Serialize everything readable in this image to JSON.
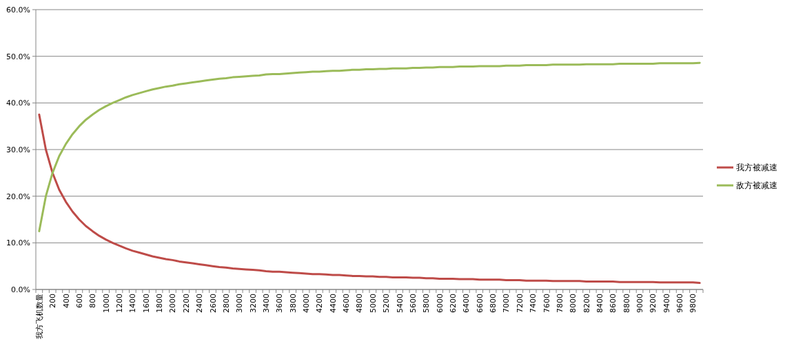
{
  "chart_data": {
    "type": "line",
    "categories": [
      "我方飞机数量",
      null,
      "200",
      null,
      "400",
      null,
      "600",
      null,
      "800",
      null,
      "1000",
      null,
      "1200",
      null,
      "1400",
      null,
      "1600",
      null,
      "1800",
      null,
      "2000",
      null,
      "2200",
      null,
      "2400",
      null,
      "2600",
      null,
      "2800",
      null,
      "3000",
      null,
      "3200",
      null,
      "3400",
      null,
      "3600",
      null,
      "3800",
      null,
      "4000",
      null,
      "4200",
      null,
      "4400",
      null,
      "4600",
      null,
      "4800",
      null,
      "5000",
      null,
      "5200",
      null,
      "5400",
      null,
      "5600",
      null,
      "5800",
      null,
      "6000",
      null,
      "6200",
      null,
      "6400",
      null,
      "6600",
      null,
      "6800",
      null,
      "7000",
      null,
      "7200",
      null,
      "7400",
      null,
      "7600",
      null,
      "7800",
      null,
      "8000",
      null,
      "8200",
      null,
      "8400",
      null,
      "8600",
      null,
      "8800",
      null,
      "9000",
      null,
      "9200",
      null,
      "9400",
      null,
      "9600",
      null,
      "9800",
      null
    ],
    "series": [
      {
        "name": "我方被减速",
        "color": "#be4b48",
        "values": [
          37.5,
          30,
          25,
          21.4,
          18.8,
          16.7,
          15,
          13.6,
          12.5,
          11.5,
          10.7,
          10,
          9.4,
          8.8,
          8.3,
          7.9,
          7.5,
          7.1,
          6.8,
          6.5,
          6.3,
          6,
          5.8,
          5.6,
          5.4,
          5.2,
          5,
          4.8,
          4.7,
          4.5,
          4.4,
          4.3,
          4.2,
          4.1,
          3.9,
          3.8,
          3.8,
          3.7,
          3.6,
          3.5,
          3.4,
          3.3,
          3.3,
          3.2,
          3.1,
          3.1,
          3,
          2.9,
          2.9,
          2.8,
          2.8,
          2.7,
          2.7,
          2.6,
          2.6,
          2.6,
          2.5,
          2.5,
          2.4,
          2.4,
          2.3,
          2.3,
          2.3,
          2.2,
          2.2,
          2.2,
          2.1,
          2.1,
          2.1,
          2.1,
          2,
          2,
          2,
          1.9,
          1.9,
          1.9,
          1.9,
          1.8,
          1.8,
          1.8,
          1.8,
          1.8,
          1.7,
          1.7,
          1.7,
          1.7,
          1.7,
          1.6,
          1.6,
          1.6,
          1.6,
          1.6,
          1.6,
          1.5,
          1.5,
          1.5,
          1.5,
          1.5,
          1.5,
          1.4
        ]
      },
      {
        "name": "敌方被减速",
        "color": "#9bbb59",
        "values": [
          12.5,
          20,
          25,
          28.6,
          31.2,
          33.3,
          35,
          36.4,
          37.5,
          38.5,
          39.3,
          40,
          40.6,
          41.2,
          41.7,
          42.1,
          42.5,
          42.9,
          43.2,
          43.5,
          43.7,
          44,
          44.2,
          44.4,
          44.6,
          44.8,
          45,
          45.2,
          45.3,
          45.5,
          45.6,
          45.7,
          45.8,
          45.9,
          46.1,
          46.2,
          46.2,
          46.3,
          46.4,
          46.5,
          46.6,
          46.7,
          46.7,
          46.8,
          46.9,
          46.9,
          47,
          47.1,
          47.1,
          47.2,
          47.2,
          47.3,
          47.3,
          47.4,
          47.4,
          47.4,
          47.5,
          47.5,
          47.6,
          47.6,
          47.7,
          47.7,
          47.7,
          47.8,
          47.8,
          47.8,
          47.9,
          47.9,
          47.9,
          47.9,
          48,
          48,
          48,
          48.1,
          48.1,
          48.1,
          48.1,
          48.2,
          48.2,
          48.2,
          48.2,
          48.2,
          48.3,
          48.3,
          48.3,
          48.3,
          48.3,
          48.4,
          48.4,
          48.4,
          48.4,
          48.4,
          48.4,
          48.5,
          48.5,
          48.5,
          48.5,
          48.5,
          48.5,
          48.6
        ]
      }
    ],
    "ylim": [
      0,
      60
    ],
    "yticks": [
      {
        "value": 0,
        "label": "0.0%"
      },
      {
        "value": 10,
        "label": "10.0%"
      },
      {
        "value": 20,
        "label": "20.0%"
      },
      {
        "value": 30,
        "label": "30.0%"
      },
      {
        "value": 40,
        "label": "40.0%"
      },
      {
        "value": 50,
        "label": "50.0%"
      },
      {
        "value": 60,
        "label": "60.0%"
      }
    ],
    "grid": "y",
    "legend": "right",
    "line_style": "solid"
  }
}
